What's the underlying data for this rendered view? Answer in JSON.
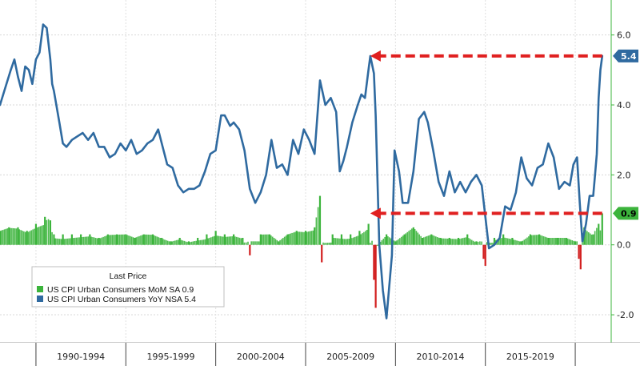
{
  "chart_data": {
    "type": "bar+line",
    "title": "",
    "xlabel": "",
    "ylabel": "",
    "ylim": [
      -2.8,
      7.0
    ],
    "x_range": [
      1988.0,
      2022.0
    ],
    "y_ticks": [
      "6.0",
      "4.0",
      "2.0",
      "0.0",
      "-2.0"
    ],
    "y_tick_values": [
      6,
      4,
      2,
      0,
      -2
    ],
    "periods": [
      {
        "label": "1990-1994",
        "start": 1990,
        "end": 1995
      },
      {
        "label": "1995-1999",
        "start": 1995,
        "end": 2000
      },
      {
        "label": "2000-2004",
        "start": 2000,
        "end": 2005
      },
      {
        "label": "2005-2009",
        "start": 2005,
        "end": 2010
      },
      {
        "label": "2010-2014",
        "start": 2010,
        "end": 2015
      },
      {
        "label": "2015-2019",
        "start": 2015,
        "end": 2020
      }
    ],
    "legend": {
      "title": "Last Price",
      "position": "bottom-left",
      "entries": [
        {
          "name": "US CPI Urban Consumers MoM SA",
          "last": "0.9",
          "color": "#3cb43c"
        },
        {
          "name": "US CPI Urban Consumers YoY NSA",
          "last": "5.4",
          "color": "#2f6aa0"
        }
      ]
    },
    "last_value_badges": [
      {
        "text": "5.4",
        "value": 5.4,
        "color": "#2f6aa0",
        "text_color": "#ffffff"
      },
      {
        "text": "0.9",
        "value": 0.9,
        "color": "#3cb43c",
        "text_color": "#000000"
      }
    ],
    "annotations": [
      {
        "type": "arrow",
        "style": "dashed",
        "color": "#e02020",
        "from": [
          2021.5,
          5.4
        ],
        "to": [
          2008.6,
          5.4
        ]
      },
      {
        "type": "arrow",
        "style": "dashed",
        "color": "#e02020",
        "from": [
          2021.5,
          0.9
        ],
        "to": [
          2008.6,
          0.9
        ]
      }
    ],
    "series": [
      {
        "name": "US CPI Urban Consumers YoY NSA",
        "type": "line",
        "color": "#2f6aa0",
        "x": [
          1988.0,
          1988.3,
          1988.6,
          1988.8,
          1989.0,
          1989.2,
          1989.4,
          1989.6,
          1989.8,
          1990.0,
          1990.2,
          1990.4,
          1990.6,
          1990.8,
          1990.9,
          1991.0,
          1991.3,
          1991.5,
          1991.7,
          1992.0,
          1992.3,
          1992.6,
          1992.9,
          1993.2,
          1993.5,
          1993.8,
          1994.1,
          1994.4,
          1994.7,
          1995.0,
          1995.3,
          1995.6,
          1995.9,
          1996.2,
          1996.5,
          1996.8,
          1997.0,
          1997.3,
          1997.6,
          1997.9,
          1998.2,
          1998.5,
          1998.8,
          1999.1,
          1999.4,
          1999.7,
          2000.0,
          2000.3,
          2000.5,
          2000.8,
          2001.0,
          2001.3,
          2001.6,
          2001.9,
          2002.2,
          2002.5,
          2002.8,
          2003.1,
          2003.4,
          2003.7,
          2004.0,
          2004.3,
          2004.6,
          2004.9,
          2005.2,
          2005.5,
          2005.8,
          2006.1,
          2006.4,
          2006.7,
          2006.9,
          2007.1,
          2007.3,
          2007.6,
          2007.9,
          2008.1,
          2008.3,
          2008.5,
          2008.6,
          2008.8,
          2008.9,
          2009.1,
          2009.3,
          2009.5,
          2009.8,
          2009.95,
          2010.2,
          2010.4,
          2010.7,
          2011.0,
          2011.3,
          2011.6,
          2011.8,
          2012.1,
          2012.4,
          2012.7,
          2013.0,
          2013.3,
          2013.6,
          2013.9,
          2014.2,
          2014.5,
          2014.8,
          2015.0,
          2015.2,
          2015.5,
          2015.8,
          2016.1,
          2016.4,
          2016.7,
          2017.0,
          2017.3,
          2017.6,
          2017.9,
          2018.2,
          2018.5,
          2018.8,
          2019.1,
          2019.4,
          2019.7,
          2019.9,
          2020.1,
          2020.25,
          2020.4,
          2020.6,
          2020.8,
          2021.0,
          2021.1,
          2021.2,
          2021.3,
          2021.4,
          2021.5
        ],
        "y": [
          4.0,
          4.5,
          5.0,
          5.3,
          4.8,
          4.4,
          5.1,
          5.0,
          4.6,
          5.3,
          5.5,
          6.3,
          6.2,
          5.3,
          4.6,
          4.4,
          3.5,
          2.9,
          2.8,
          3.0,
          3.1,
          3.2,
          3.0,
          3.2,
          2.8,
          2.8,
          2.5,
          2.6,
          2.9,
          2.7,
          3.0,
          2.6,
          2.7,
          2.9,
          3.0,
          3.3,
          2.9,
          2.3,
          2.2,
          1.7,
          1.5,
          1.6,
          1.6,
          1.7,
          2.1,
          2.6,
          2.7,
          3.7,
          3.7,
          3.4,
          3.5,
          3.3,
          2.7,
          1.6,
          1.2,
          1.5,
          2.0,
          3.0,
          2.2,
          2.3,
          2.0,
          3.0,
          2.6,
          3.3,
          3.0,
          2.6,
          4.7,
          4.0,
          4.2,
          3.8,
          2.1,
          2.4,
          2.8,
          3.5,
          4.0,
          4.3,
          4.2,
          5.0,
          5.4,
          4.9,
          3.7,
          0.0,
          -1.3,
          -2.1,
          -0.3,
          2.7,
          2.1,
          1.2,
          1.2,
          2.1,
          3.6,
          3.8,
          3.5,
          2.7,
          1.8,
          1.4,
          2.1,
          1.5,
          1.8,
          1.5,
          1.8,
          2.0,
          1.7,
          0.8,
          -0.1,
          0.0,
          0.2,
          1.1,
          1.0,
          1.5,
          2.5,
          1.9,
          1.7,
          2.2,
          2.3,
          2.9,
          2.5,
          1.6,
          1.8,
          1.7,
          2.3,
          2.5,
          1.2,
          0.1,
          0.6,
          1.4,
          1.4,
          2.0,
          2.6,
          4.2,
          5.0,
          5.4
        ]
      },
      {
        "name": "US CPI Urban Consumers MoM SA",
        "type": "bar",
        "color_positive": "#3cb43c",
        "color_negative": "#d21f1f",
        "x": [
          1988.0,
          1988.5,
          1989.0,
          1989.5,
          1990.0,
          1990.5,
          1990.8,
          1991.0,
          1991.5,
          1992.0,
          1992.5,
          1993.0,
          1993.5,
          1994.0,
          1994.5,
          1995.0,
          1995.5,
          1996.0,
          1996.5,
          1997.0,
          1997.5,
          1998.0,
          1998.5,
          1999.0,
          1999.5,
          2000.0,
          2000.5,
          2001.0,
          2001.5,
          2001.9,
          2002.5,
          2003.0,
          2003.5,
          2004.0,
          2004.5,
          2005.0,
          2005.5,
          2005.8,
          2005.9,
          2006.5,
          2007.0,
          2007.5,
          2008.0,
          2008.5,
          2008.8,
          2008.9,
          2009.0,
          2009.5,
          2010.0,
          2010.5,
          2011.0,
          2011.5,
          2012.0,
          2012.5,
          2013.0,
          2013.5,
          2014.0,
          2014.5,
          2014.9,
          2015.0,
          2015.5,
          2016.0,
          2016.5,
          2017.0,
          2017.5,
          2018.0,
          2018.5,
          2019.0,
          2019.5,
          2020.0,
          2020.2,
          2020.3,
          2020.5,
          2021.0,
          2021.3,
          2021.5
        ],
        "values": [
          0.4,
          0.5,
          0.5,
          0.4,
          0.6,
          0.8,
          0.7,
          0.3,
          0.3,
          0.3,
          0.3,
          0.3,
          0.2,
          0.3,
          0.3,
          0.3,
          0.2,
          0.3,
          0.3,
          0.2,
          0.1,
          0.2,
          0.1,
          0.2,
          0.3,
          0.4,
          0.3,
          0.3,
          0.2,
          -0.3,
          0.3,
          0.3,
          0.1,
          0.3,
          0.4,
          0.4,
          0.5,
          1.4,
          -0.5,
          0.3,
          0.3,
          0.3,
          0.4,
          0.6,
          -1.0,
          -1.8,
          0.0,
          0.3,
          0.1,
          0.3,
          0.5,
          0.2,
          0.3,
          0.2,
          0.2,
          0.2,
          0.3,
          0.1,
          -0.4,
          -0.6,
          0.2,
          0.3,
          0.2,
          0.1,
          0.3,
          0.3,
          0.2,
          0.2,
          0.2,
          0.1,
          -0.4,
          -0.7,
          0.5,
          0.3,
          0.6,
          0.9
        ]
      }
    ]
  }
}
